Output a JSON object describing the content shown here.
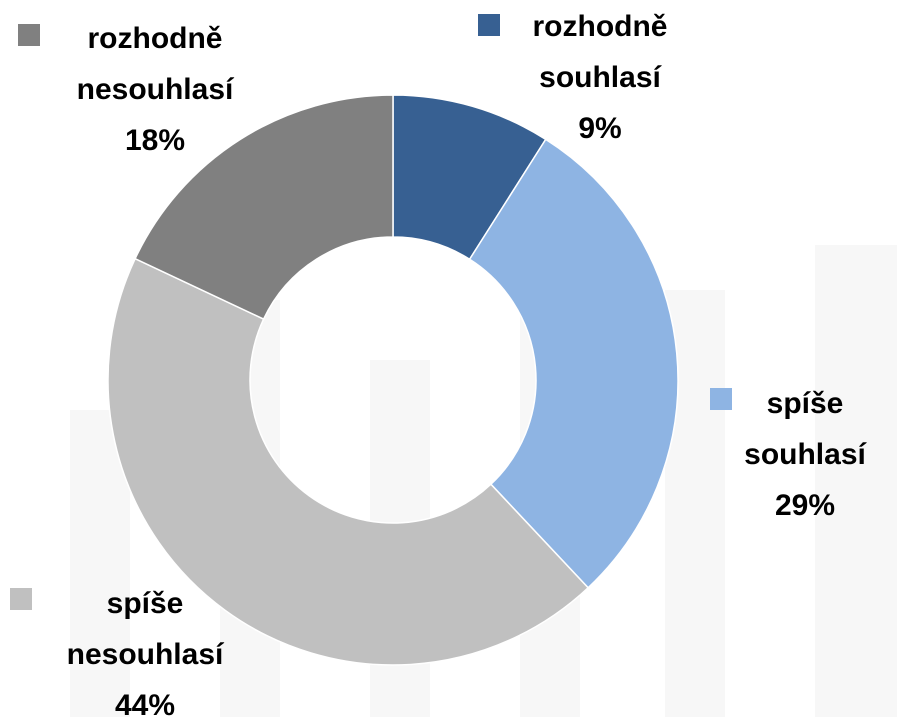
{
  "chart_data": {
    "type": "donut",
    "categories": [
      "rozhodně souhlasí",
      "spíše souhlasí",
      "spíše nesouhlasí",
      "rozhodně nesouhlasí"
    ],
    "values": [
      9,
      29,
      44,
      18
    ],
    "value_labels": [
      "9%",
      "29%",
      "44%",
      "18%"
    ],
    "colors": [
      "#376092",
      "#8eb4e3",
      "#c0c0c0",
      "#808080"
    ]
  }
}
